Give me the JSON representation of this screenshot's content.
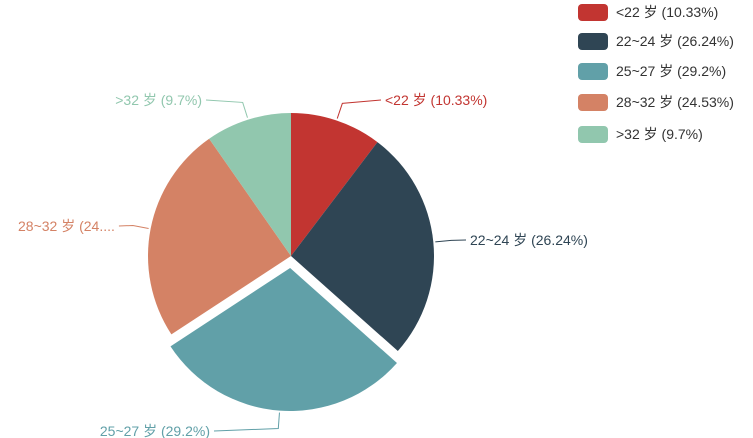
{
  "chart_data": {
    "type": "pie",
    "title": "",
    "categories": [
      "<22 岁",
      "22~24 岁",
      "25~27 岁",
      "28~32 岁",
      ">32 岁"
    ],
    "values": [
      10.33,
      26.24,
      29.2,
      24.53,
      9.7
    ],
    "colors": [
      "#c23531",
      "#2f4554",
      "#61a0a8",
      "#d48265",
      "#91c7ae"
    ],
    "slice_labels": [
      "<22 岁 (10.33%)",
      "22~24 岁 (26.24%)",
      "25~27 岁 (29.2%)",
      "28~32 岁 (24....",
      ">32 岁 (9.7%)"
    ],
    "legend": {
      "position": "top-right",
      "items": [
        "<22 岁 (10.33%)",
        "22~24 岁 (26.24%)",
        "25~27 岁 (29.2%)",
        "28~32 岁 (24.53%)",
        ">32 岁 (9.7%)"
      ]
    },
    "exploded_slice": "25~27 岁"
  }
}
